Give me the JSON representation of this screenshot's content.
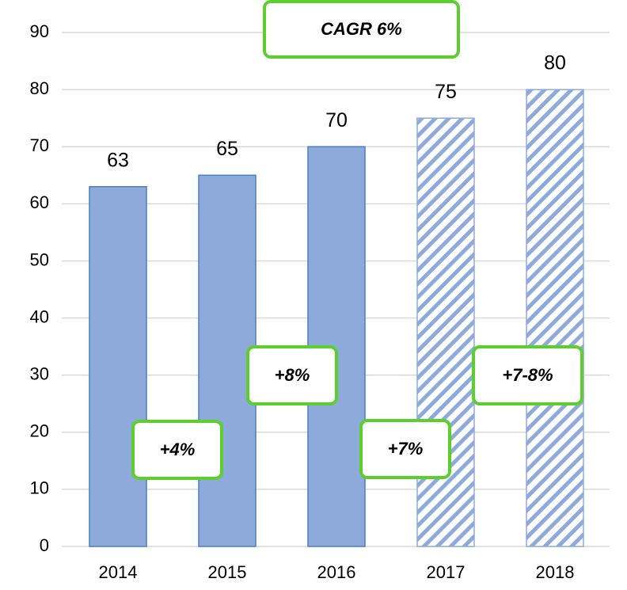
{
  "chart_data": {
    "type": "bar",
    "categories": [
      "2014",
      "2015",
      "2016",
      "2017",
      "2018"
    ],
    "values": [
      63,
      65,
      70,
      75,
      80
    ],
    "color": "#8eaadb",
    "edge_color": "#4a7fc1",
    "patterns": [
      "solid",
      "solid",
      "solid",
      "hatch",
      "hatch"
    ],
    "ylim": [
      0,
      90
    ],
    "yticks": [
      0,
      10,
      20,
      30,
      40,
      50,
      60,
      70,
      80,
      90
    ],
    "grid": true,
    "annotations": [
      "CAGR 6%",
      "+4%",
      "+8%",
      "+7%",
      "+7-8%"
    ],
    "annotation_color": "#5ccf2e"
  }
}
